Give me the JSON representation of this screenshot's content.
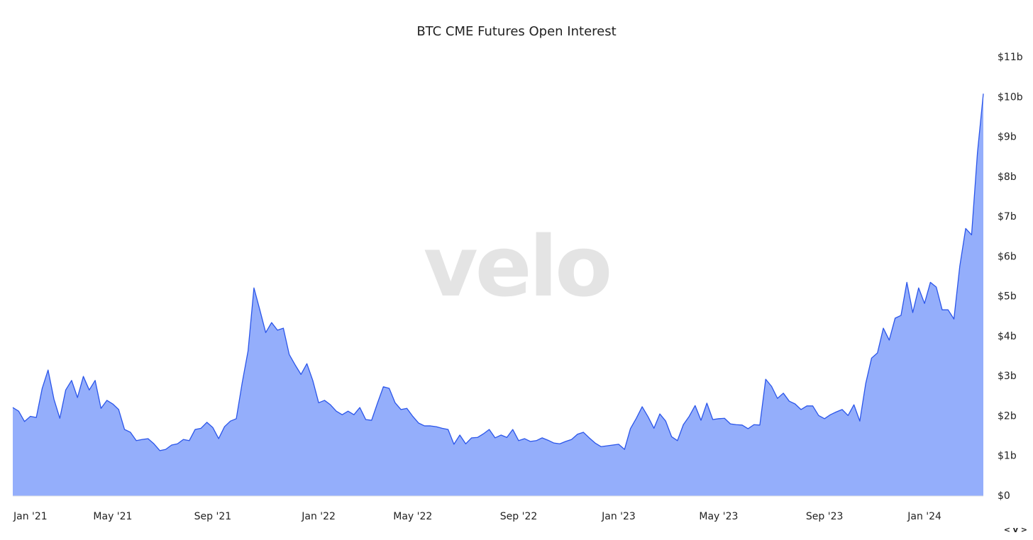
{
  "chart_data": {
    "type": "area",
    "title": "BTC CME Futures Open Interest",
    "watermark": "velo",
    "corner_mark": "< v >",
    "line_color": "#2a55ea",
    "fill_color": "#94aefb",
    "categories": [
      null,
      null,
      null,
      "Jan '21",
      null,
      null,
      null,
      null,
      null,
      null,
      null,
      null,
      null,
      null,
      null,
      null,
      null,
      "May '21",
      null,
      null,
      null,
      null,
      null,
      null,
      null,
      null,
      null,
      null,
      null,
      null,
      null,
      null,
      null,
      null,
      "Sep '21",
      null,
      null,
      null,
      null,
      null,
      null,
      null,
      null,
      null,
      null,
      null,
      null,
      null,
      null,
      null,
      null,
      null,
      "Jan '22",
      null,
      null,
      null,
      null,
      null,
      null,
      null,
      null,
      null,
      null,
      null,
      null,
      null,
      null,
      null,
      "May '22",
      null,
      null,
      null,
      null,
      null,
      null,
      null,
      null,
      null,
      null,
      null,
      null,
      null,
      null,
      null,
      null,
      null,
      "Sep '22",
      null,
      null,
      null,
      null,
      null,
      null,
      null,
      null,
      null,
      null,
      null,
      null,
      null,
      null,
      null,
      null,
      "Jan '23",
      null,
      null,
      null,
      null,
      null,
      null,
      null,
      null,
      null,
      null,
      null,
      null,
      null,
      null,
      null,
      null,
      "May '23",
      null,
      null,
      null,
      null,
      null,
      null,
      null,
      null,
      null,
      null,
      null,
      null,
      null,
      null,
      null,
      null,
      null,
      "Sep '23",
      null,
      null,
      null,
      null,
      null,
      null,
      null,
      null,
      null,
      null,
      null,
      null,
      null,
      null,
      null,
      null,
      "Jan '24",
      null,
      null,
      null,
      null,
      null,
      null,
      null,
      null,
      null,
      null
    ],
    "values": [
      2.22,
      2.13,
      1.87,
      2.0,
      1.97,
      2.7,
      3.16,
      2.43,
      1.95,
      2.66,
      2.9,
      2.47,
      3.0,
      2.66,
      2.9,
      2.2,
      2.4,
      2.31,
      2.17,
      1.67,
      1.6,
      1.39,
      1.42,
      1.44,
      1.31,
      1.14,
      1.17,
      1.28,
      1.31,
      1.42,
      1.39,
      1.67,
      1.7,
      1.85,
      1.72,
      1.44,
      1.74,
      1.88,
      1.94,
      2.84,
      3.64,
      5.22,
      4.67,
      4.1,
      4.35,
      4.16,
      4.21,
      3.55,
      3.29,
      3.05,
      3.32,
      2.9,
      2.34,
      2.4,
      2.29,
      2.13,
      2.04,
      2.13,
      2.04,
      2.22,
      1.92,
      1.9,
      2.33,
      2.74,
      2.7,
      2.34,
      2.17,
      2.2,
      2.0,
      1.83,
      1.76,
      1.76,
      1.74,
      1.7,
      1.67,
      1.3,
      1.53,
      1.31,
      1.46,
      1.47,
      1.56,
      1.67,
      1.46,
      1.53,
      1.47,
      1.67,
      1.39,
      1.44,
      1.37,
      1.39,
      1.46,
      1.4,
      1.33,
      1.31,
      1.37,
      1.42,
      1.55,
      1.6,
      1.46,
      1.33,
      1.24,
      1.26,
      1.28,
      1.3,
      1.17,
      1.69,
      1.95,
      2.24,
      1.99,
      1.7,
      2.06,
      1.88,
      1.49,
      1.39,
      1.79,
      2.0,
      2.27,
      1.9,
      2.33,
      1.92,
      1.94,
      1.95,
      1.81,
      1.79,
      1.78,
      1.69,
      1.79,
      1.78,
      2.93,
      2.75,
      2.45,
      2.58,
      2.38,
      2.31,
      2.17,
      2.26,
      2.26,
      2.02,
      1.94,
      2.04,
      2.11,
      2.17,
      2.02,
      2.29,
      1.88,
      2.82,
      3.46,
      3.59,
      4.21,
      3.91,
      4.46,
      4.53,
      5.36,
      4.6,
      5.22,
      4.83,
      5.36,
      5.24,
      4.67,
      4.67,
      4.44,
      5.77,
      6.71,
      6.55,
      8.61,
      10.09
    ],
    "ylim": [
      0,
      11
    ],
    "yticks": [
      {
        "value": 0,
        "label": "$0"
      },
      {
        "value": 1,
        "label": "$1b"
      },
      {
        "value": 2,
        "label": "$2b"
      },
      {
        "value": 3,
        "label": "$3b"
      },
      {
        "value": 4,
        "label": "$4b"
      },
      {
        "value": 5,
        "label": "$5b"
      },
      {
        "value": 6,
        "label": "$6b"
      },
      {
        "value": 7,
        "label": "$7b"
      },
      {
        "value": 8,
        "label": "$8b"
      },
      {
        "value": 9,
        "label": "$9b"
      },
      {
        "value": 10,
        "label": "$10b"
      },
      {
        "value": 11,
        "label": "$11b"
      }
    ]
  }
}
